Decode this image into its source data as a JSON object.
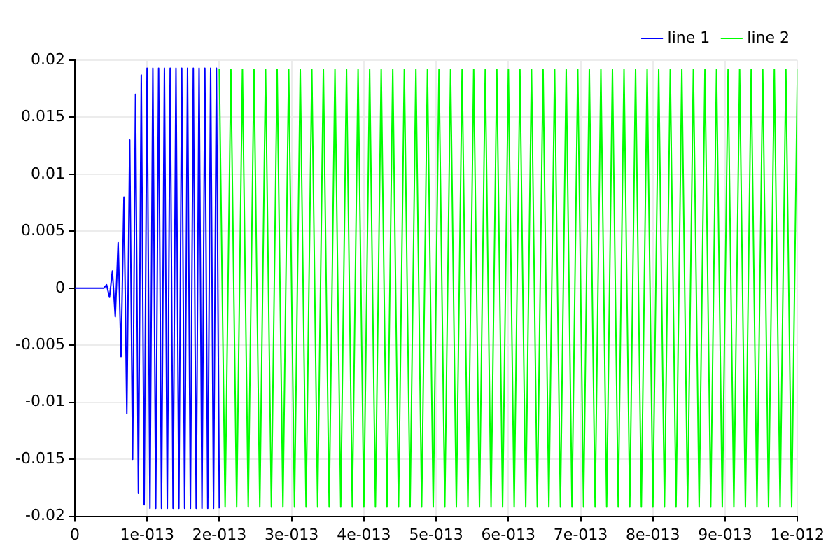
{
  "chart_data": {
    "type": "line",
    "xlim": [
      0,
      1e-12
    ],
    "ylim": [
      -0.02,
      0.02
    ],
    "xticks": [
      0,
      {
        "value": 1e-13,
        "label": "1e-013"
      },
      {
        "value": 2e-13,
        "label": "2e-013"
      },
      {
        "value": 3e-13,
        "label": "3e-013"
      },
      {
        "value": 4e-13,
        "label": "4e-013"
      },
      {
        "value": 5e-13,
        "label": "5e-013"
      },
      {
        "value": 6e-13,
        "label": "6e-013"
      },
      {
        "value": 7e-13,
        "label": "7e-013"
      },
      {
        "value": 8e-13,
        "label": "8e-013"
      },
      {
        "value": 9e-13,
        "label": "9e-013"
      },
      {
        "value": 1e-12,
        "label": "1e-012"
      }
    ],
    "yticks": [
      0.02,
      0.015,
      0.01,
      0.005,
      0,
      -0.005,
      -0.01,
      -0.015,
      -0.02
    ],
    "grid": true,
    "legend": "top right",
    "marker": "none",
    "line_style": "solid",
    "series": [
      {
        "name": "line 1",
        "color": "#0000ff",
        "x": [
          0,
          4e-14,
          4.4e-14,
          4.8e-14,
          5.2e-14,
          5.6e-14,
          6e-14,
          6.4e-14,
          6.8e-14,
          7.2e-14,
          7.6e-14,
          8e-14,
          8.4e-14,
          8.8e-14,
          9.2e-14,
          9.6e-14,
          1e-13,
          1.04e-13,
          1.08e-13,
          1.12e-13,
          1.16e-13,
          1.2e-13,
          1.24e-13,
          1.28e-13,
          1.32e-13,
          1.36e-13,
          1.4e-13,
          1.44e-13,
          1.48e-13,
          1.52e-13,
          1.56e-13,
          1.6e-13,
          1.64e-13,
          1.68e-13,
          1.72e-13,
          1.76e-13,
          1.8e-13,
          1.84e-13,
          1.88e-13,
          1.92e-13,
          1.96e-13,
          2e-13
        ],
        "values": [
          0,
          0,
          0.0003,
          -0.0008,
          0.0015,
          -0.0025,
          0.004,
          -0.006,
          0.008,
          -0.011,
          0.013,
          -0.015,
          0.017,
          -0.018,
          0.0187,
          -0.019,
          0.0193,
          -0.0193,
          0.0193,
          -0.0193,
          0.0193,
          -0.0193,
          0.0193,
          -0.0193,
          0.0193,
          -0.0193,
          0.0193,
          -0.0193,
          0.0193,
          -0.0193,
          0.0193,
          -0.0193,
          0.0193,
          -0.0193,
          0.0193,
          -0.0193,
          0.0193,
          -0.0193,
          0.0193,
          -0.0193,
          0.0193,
          -0.0193
        ]
      },
      {
        "name": "line 2",
        "color": "#00ff00",
        "x": [
          2e-13,
          2.08e-13,
          2.16e-13,
          2.24e-13,
          2.32e-13,
          2.4e-13,
          2.48e-13,
          2.56e-13,
          2.64e-13,
          2.72e-13,
          2.8e-13,
          2.88e-13,
          2.96e-13,
          3.04e-13,
          3.12e-13,
          3.2e-13,
          3.28e-13,
          3.36e-13,
          3.44e-13,
          3.52e-13,
          3.6e-13,
          3.68e-13,
          3.76e-13,
          3.84e-13,
          3.92e-13,
          4e-13,
          4.08e-13,
          4.16e-13,
          4.24e-13,
          4.32e-13,
          4.4e-13,
          4.48e-13,
          4.56e-13,
          4.64e-13,
          4.72e-13,
          4.8e-13,
          4.88e-13,
          4.96e-13,
          5.04e-13,
          5.12e-13,
          5.2e-13,
          5.28e-13,
          5.36e-13,
          5.44e-13,
          5.52e-13,
          5.6e-13,
          5.68e-13,
          5.76e-13,
          5.84e-13,
          5.92e-13,
          6e-13,
          6.08e-13,
          6.16e-13,
          6.24e-13,
          6.32e-13,
          6.4e-13,
          6.48e-13,
          6.56e-13,
          6.64e-13,
          6.72e-13,
          6.8e-13,
          6.88e-13,
          6.96e-13,
          7.04e-13,
          7.12e-13,
          7.2e-13,
          7.28e-13,
          7.36e-13,
          7.44e-13,
          7.52e-13,
          7.6e-13,
          7.68e-13,
          7.76e-13,
          7.84e-13,
          7.92e-13,
          8e-13,
          8.08e-13,
          8.16e-13,
          8.24e-13,
          8.32e-13,
          8.4e-13,
          8.48e-13,
          8.56e-13,
          8.64e-13,
          8.72e-13,
          8.8e-13,
          8.88e-13,
          8.96e-13,
          9.04e-13,
          9.12e-13,
          9.2e-13,
          9.28e-13,
          9.36e-13,
          9.44e-13,
          9.52e-13,
          9.6e-13,
          9.68e-13,
          9.76e-13,
          9.84e-13,
          9.92e-13,
          1e-12
        ],
        "values": [
          0.0192,
          -0.0192,
          0.0192,
          -0.0192,
          0.0192,
          -0.0192,
          0.0192,
          -0.0192,
          0.0192,
          -0.0192,
          0.0192,
          -0.0192,
          0.0192,
          -0.0192,
          0.0192,
          -0.0192,
          0.0192,
          -0.0192,
          0.0192,
          -0.0192,
          0.0192,
          -0.0192,
          0.0192,
          -0.0192,
          0.0192,
          -0.0192,
          0.0192,
          -0.0192,
          0.0192,
          -0.0192,
          0.0192,
          -0.0192,
          0.0192,
          -0.0192,
          0.0192,
          -0.0192,
          0.0192,
          -0.0192,
          0.0192,
          -0.0192,
          0.0192,
          -0.0192,
          0.0192,
          -0.0192,
          0.0192,
          -0.0192,
          0.0192,
          -0.0192,
          0.0192,
          -0.0192,
          0.0192,
          -0.0192,
          0.0192,
          -0.0192,
          0.0192,
          -0.0192,
          0.0192,
          -0.0192,
          0.0192,
          -0.0192,
          0.0192,
          -0.0192,
          0.0192,
          -0.0192,
          0.0192,
          -0.0192,
          0.0192,
          -0.0192,
          0.0192,
          -0.0192,
          0.0192,
          -0.0192,
          0.0192,
          -0.0192,
          0.0192,
          -0.0192,
          0.0192,
          -0.0192,
          0.0192,
          -0.0192,
          0.0192,
          -0.0192,
          0.0192,
          -0.0192,
          0.0192,
          -0.0192,
          0.0192,
          -0.0192,
          0.0192,
          -0.0192,
          0.0192,
          -0.0192,
          0.0192,
          -0.0192,
          0.0192,
          -0.0192,
          0.0192,
          -0.0192,
          0.0192,
          -0.0192,
          0.0192
        ]
      }
    ]
  }
}
